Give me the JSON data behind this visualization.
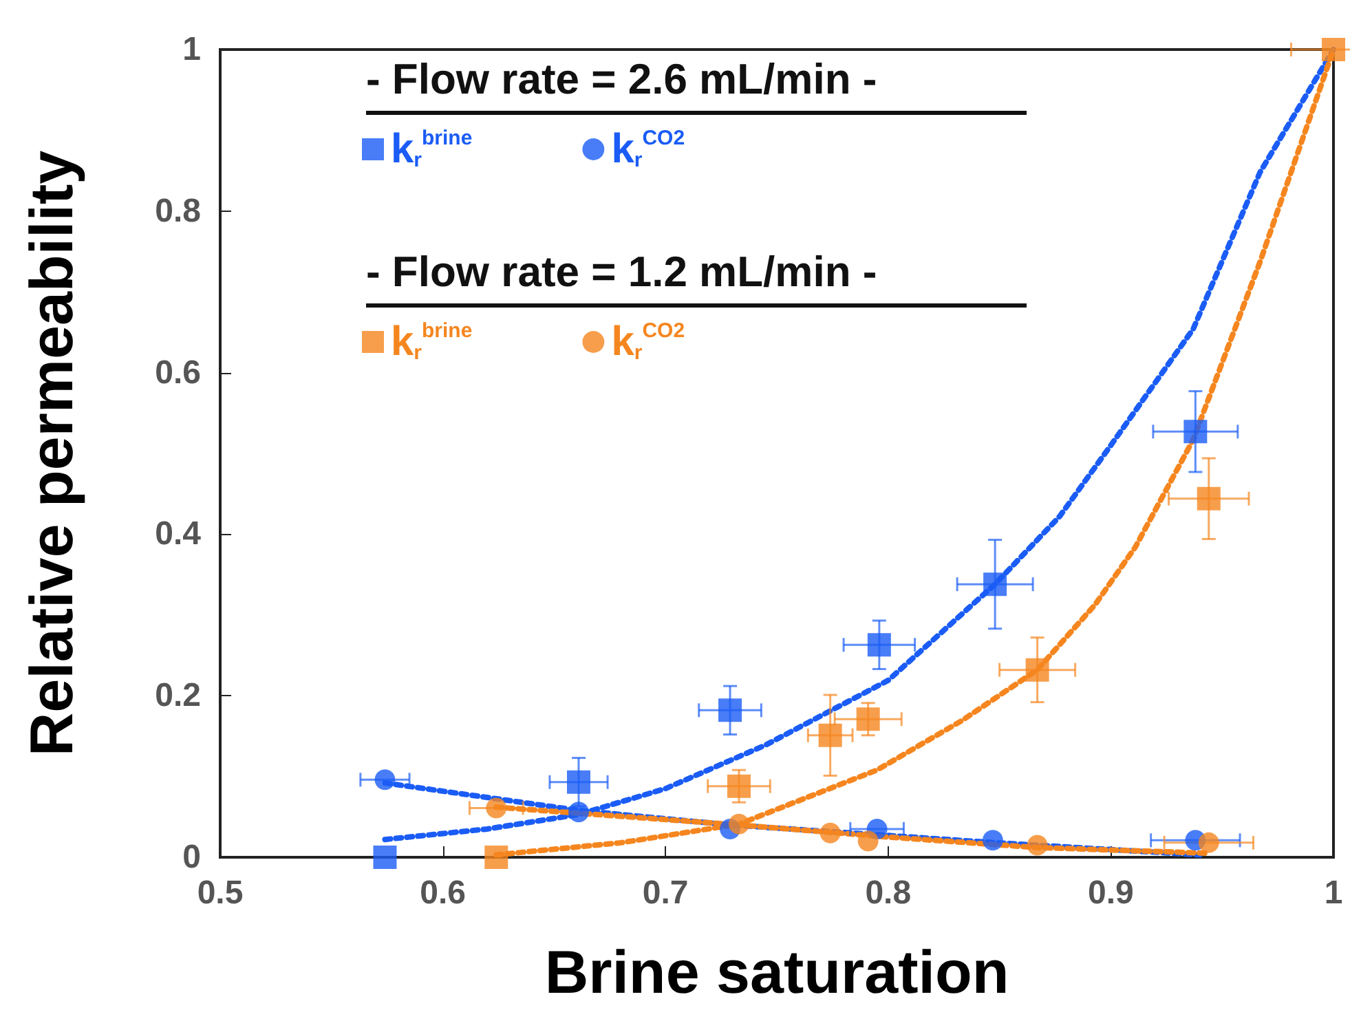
{
  "chart_data": {
    "type": "scatter",
    "xlabel": "Brine saturation",
    "ylabel": "Relative permeability",
    "xlim": [
      0.5,
      1
    ],
    "ylim": [
      0,
      1
    ],
    "xticks": [
      0.5,
      0.6,
      0.7,
      0.8,
      0.9,
      1
    ],
    "yticks": [
      0,
      0.2,
      0.4,
      0.6,
      0.8,
      1
    ],
    "legend": "top left",
    "annotations": [
      "- Flow rate = 2.6 mL/min -",
      "- Flow rate = 1.2 mL/min -"
    ],
    "series": [
      {
        "name": "k$_{r}$$^{brine}$",
        "marker": "square",
        "color": "#1a5cf5",
        "x": [
          0.574,
          0.661,
          0.729,
          0.796,
          0.848,
          0.938
        ],
        "values": [
          0.0,
          0.093,
          0.182,
          0.263,
          0.338,
          0.527
        ],
        "errors": [
          null,
          0.03,
          0.03,
          0.03,
          0.055,
          0.05
        ],
        "xerrors": [
          null,
          0.013,
          0.014,
          0.016,
          0.017,
          0.019
        ]
      },
      {
        "name": "k$_{r}$$^{CO2}$",
        "marker": "circle",
        "color": "#1a5cf5",
        "x": [
          0.574,
          0.661,
          0.729,
          0.795,
          0.847,
          0.938
        ],
        "values": [
          0.096,
          0.056,
          0.035,
          0.035,
          0.021,
          0.021
        ],
        "errors": [
          null,
          null,
          null,
          null,
          null,
          null
        ],
        "xerrors": [
          0.011,
          null,
          null,
          0.012,
          null,
          0.02
        ]
      },
      {
        "name": "k$_{r}$$^{brine}$",
        "marker": "square",
        "color": "#f5861f",
        "x": [
          0.624,
          0.733,
          0.774,
          0.791,
          0.867,
          0.944,
          1
        ],
        "values": [
          0.0,
          0.088,
          0.151,
          0.171,
          0.232,
          0.444,
          1
        ],
        "errors": [
          null,
          0.02,
          0.05,
          0.02,
          0.04,
          0.05,
          null
        ],
        "xerrors": [
          null,
          0.014,
          0.01,
          0.015,
          0.017,
          0.018,
          0.019
        ]
      },
      {
        "name": "k$_{r}$$^{CO2}$",
        "marker": "circle",
        "color": "#f5861f",
        "x": [
          0.624,
          0.733,
          0.774,
          0.791,
          0.867,
          0.944
        ],
        "values": [
          0.061,
          0.041,
          0.03,
          0.02,
          0.015,
          0.018
        ],
        "errors": [
          null,
          null,
          null,
          null,
          null,
          null
        ],
        "xerrors": [
          0.012,
          null,
          null,
          null,
          null,
          0.02
        ]
      },
      {
        "type": "line",
        "marker": "none",
        "line_style": "dotted",
        "color": "#1a5cf5",
        "x": [
          0.574,
          0.62,
          0.661,
          0.7,
          0.745,
          0.8,
          0.848,
          0.877,
          0.9,
          0.937,
          0.967,
          1
        ],
        "values": [
          0.022,
          0.035,
          0.053,
          0.085,
          0.139,
          0.219,
          0.338,
          0.422,
          0.51,
          0.654,
          0.848,
          1
        ]
      },
      {
        "type": "line",
        "marker": "none",
        "line_style": "dotted",
        "color": "#1a5cf5",
        "x": [
          0.574,
          0.661,
          0.729,
          0.8,
          0.848,
          0.94
        ],
        "values": [
          0.092,
          0.058,
          0.04,
          0.027,
          0.018,
          0.003
        ]
      },
      {
        "type": "line",
        "marker": "none",
        "line_style": "dotted",
        "color": "#f5861f",
        "x": [
          0.624,
          0.68,
          0.733,
          0.795,
          0.833,
          0.867,
          0.893,
          0.911,
          0.937,
          0.967,
          1
        ],
        "values": [
          0.003,
          0.018,
          0.041,
          0.108,
          0.169,
          0.232,
          0.313,
          0.384,
          0.517,
          0.737,
          1
        ]
      },
      {
        "type": "line",
        "marker": "none",
        "line_style": "dotted",
        "color": "#f5861f",
        "x": [
          0.624,
          0.733,
          0.8,
          0.867,
          0.944
        ],
        "values": [
          0.062,
          0.04,
          0.025,
          0.012,
          0.005
        ]
      }
    ]
  }
}
